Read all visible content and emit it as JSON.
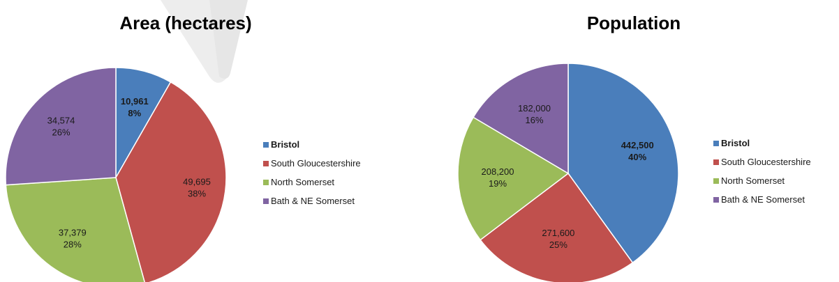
{
  "colors": {
    "bristol": "#4a7ebb",
    "south_gloucestershire": "#c0504d",
    "north_somerset": "#9bbb59",
    "bath_ne_somerset": "#8064a2"
  },
  "chart_data": [
    {
      "type": "pie",
      "title": "Area (hectares)",
      "legend_position": "right",
      "categories": [
        "Bristol",
        "South Gloucestershire",
        "North Somerset",
        "Bath & NE Somerset"
      ],
      "values": [
        10961,
        49695,
        37379,
        34574
      ],
      "value_labels": [
        "10,961",
        "49,695",
        "37,379",
        "34,574"
      ],
      "percent_labels": [
        "8%",
        "38%",
        "28%",
        "26%"
      ],
      "colors": [
        "#4a7ebb",
        "#c0504d",
        "#9bbb59",
        "#8064a2"
      ],
      "bold_categories": [
        "Bristol"
      ]
    },
    {
      "type": "pie",
      "title": "Population",
      "legend_position": "right",
      "categories": [
        "Bristol",
        "South Gloucestershire",
        "North Somerset",
        "Bath & NE Somerset"
      ],
      "values": [
        442500,
        271600,
        208200,
        182000
      ],
      "value_labels": [
        "442,500",
        "271,600",
        "208,200",
        "182,000"
      ],
      "percent_labels": [
        "40%",
        "25%",
        "19%",
        "16%"
      ],
      "colors": [
        "#4a7ebb",
        "#c0504d",
        "#9bbb59",
        "#8064a2"
      ],
      "bold_categories": [
        "Bristol"
      ]
    }
  ]
}
